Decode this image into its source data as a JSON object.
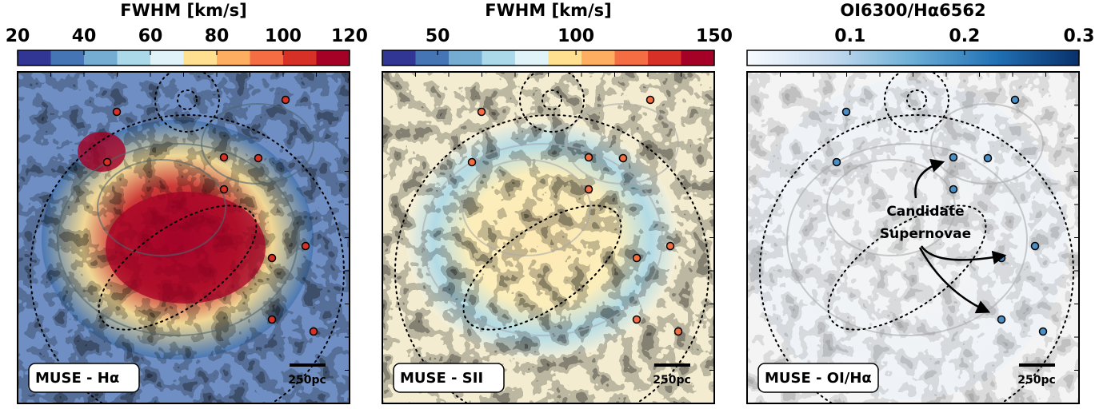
{
  "panels": [
    {
      "title": "FWHM [km/s]",
      "colorbar": {
        "lim": [
          20,
          120
        ],
        "ticks": [
          20,
          40,
          60,
          80,
          100,
          120
        ],
        "colors": [
          "#313695",
          "#4575b4",
          "#74add1",
          "#abd9e9",
          "#e0f3f8",
          "#fee090",
          "#fdae61",
          "#f46d43",
          "#d73027",
          "#a50026"
        ]
      },
      "label": "MUSE - Hα",
      "scalebar": "250pc"
    },
    {
      "title": "FWHM [km/s]",
      "colorbar": {
        "lim": [
          30,
          150
        ],
        "ticks": [
          50,
          100,
          150
        ],
        "colors": [
          "#313695",
          "#4575b4",
          "#74add1",
          "#abd9e9",
          "#e0f3f8",
          "#fee090",
          "#fdae61",
          "#f46d43",
          "#d73027",
          "#a50026"
        ]
      },
      "label": "MUSE - SII",
      "scalebar": "250pc"
    },
    {
      "title": "OI6300/Hα6562",
      "colorbar": {
        "lim": [
          0.01,
          0.3
        ],
        "ticks": [
          0.1,
          0.2,
          0.3
        ],
        "colors": [
          "#f7fbff",
          "#c6dbef",
          "#6baed6",
          "#2171b5",
          "#08306b"
        ]
      },
      "label": "MUSE - OI/Hα",
      "scalebar": "250pc",
      "annotation": [
        "Candidate",
        "Supernovae"
      ]
    }
  ]
}
